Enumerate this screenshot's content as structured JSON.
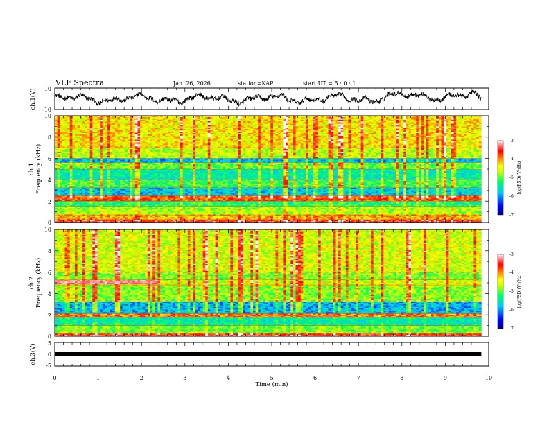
{
  "header": {
    "title": "VLF Spectra",
    "date": "Jan. 26, 2026",
    "station": "station=KAP",
    "start_ut": "start UT =  5 : 0 : 1"
  },
  "chart_data": [
    {
      "type": "line",
      "name": "ch1-waveform",
      "ylabel": "ch.1(V)",
      "ylim": [
        -10,
        10
      ],
      "yticks": [
        "10",
        "-10"
      ],
      "xlim": [
        0,
        10
      ],
      "duration_min": 9.83,
      "description_values": "noisy waveform fluctuating roughly between -6 V and +8 V"
    },
    {
      "type": "heatmap",
      "name": "ch1-spectrogram",
      "ylabel": "ch.1\nFrequency (kHz)",
      "ylabel_top": "ch.1",
      "ylabel_bottom": "Frequency (kHz)",
      "ylim": [
        0,
        10
      ],
      "yticks": [
        "0",
        "2",
        "4",
        "6",
        "8",
        "10"
      ],
      "xlim": [
        0,
        10
      ],
      "duration_min": 9.83,
      "colorbar": {
        "label": "log(PSD)(V²/Hz)",
        "range": [
          -7,
          -3
        ],
        "ticks": [
          "-3",
          "-4",
          "-5",
          "-6",
          "-7"
        ]
      },
      "bands": [
        {
          "f_low": 0.0,
          "f_high": 0.3,
          "level": -3.5
        },
        {
          "f_low": 0.3,
          "f_high": 0.7,
          "level": -4.2
        },
        {
          "f_low": 0.7,
          "f_high": 1.5,
          "level": -4.8
        },
        {
          "f_low": 1.5,
          "f_high": 2.0,
          "level": -5.3
        },
        {
          "f_low": 2.0,
          "f_high": 2.5,
          "level": -3.8
        },
        {
          "f_low": 2.5,
          "f_high": 3.3,
          "level": -5.9
        },
        {
          "f_low": 3.3,
          "f_high": 4.0,
          "level": -5.2
        },
        {
          "f_low": 4.0,
          "f_high": 5.0,
          "level": -5.6
        },
        {
          "f_low": 5.0,
          "f_high": 5.6,
          "level": -5.0
        },
        {
          "f_low": 5.6,
          "f_high": 6.0,
          "level": -6.0
        },
        {
          "f_low": 6.0,
          "f_high": 7.0,
          "level": -4.7
        },
        {
          "f_low": 7.0,
          "f_high": 10.0,
          "level": -4.4
        }
      ]
    },
    {
      "type": "heatmap",
      "name": "ch2-spectrogram",
      "ylabel_top": "ch.2",
      "ylabel_bottom": "Frequency (kHz)",
      "ylim": [
        0,
        10
      ],
      "yticks": [
        "0",
        "2",
        "4",
        "6",
        "8",
        "10"
      ],
      "xlim": [
        0,
        10
      ],
      "duration_min": 9.83,
      "colorbar": {
        "label": "log(PSD)(V²/Hz)",
        "range": [
          -7,
          -3
        ],
        "ticks": [
          "-3",
          "-4",
          "-5",
          "-6",
          "-7"
        ]
      },
      "bands": [
        {
          "f_low": 0.0,
          "f_high": 0.3,
          "level": -3.6
        },
        {
          "f_low": 0.3,
          "f_high": 1.0,
          "level": -5.0
        },
        {
          "f_low": 1.0,
          "f_high": 1.8,
          "level": -5.6
        },
        {
          "f_low": 1.8,
          "f_high": 2.1,
          "level": -4.0
        },
        {
          "f_low": 2.1,
          "f_high": 3.2,
          "level": -6.0
        },
        {
          "f_low": 3.2,
          "f_high": 4.8,
          "level": -4.9
        },
        {
          "f_low": 4.8,
          "f_high": 5.3,
          "level": -4.6
        },
        {
          "f_low": 5.3,
          "f_high": 6.0,
          "level": -4.9
        },
        {
          "f_low": 6.0,
          "f_high": 10.0,
          "level": -4.6
        }
      ],
      "features": [
        {
          "label": "narrowband tone",
          "f_khz": 5.1,
          "t_start_min": 0.0,
          "t_end_min": 2.35,
          "level": -3.2
        }
      ]
    },
    {
      "type": "line",
      "name": "ch3-waveform",
      "ylabel": "ch.3(V)",
      "ylim": [
        -5,
        5
      ],
      "yticks": [
        "5",
        "0",
        "-5"
      ],
      "xlim": [
        0,
        10
      ],
      "duration_min": 9.83,
      "xlabel": "Time (min)",
      "xticks": [
        "0",
        "1",
        "2",
        "3",
        "4",
        "5",
        "6",
        "7",
        "8",
        "9",
        "10"
      ],
      "constant_level": 0
    }
  ],
  "colors": {
    "colormap": [
      "#000080",
      "#0000ff",
      "#00c8ff",
      "#00ff60",
      "#c8ff00",
      "#ffff00",
      "#ff8000",
      "#ff0000",
      "#ff8080",
      "#ffffff"
    ],
    "line": "#000000"
  }
}
